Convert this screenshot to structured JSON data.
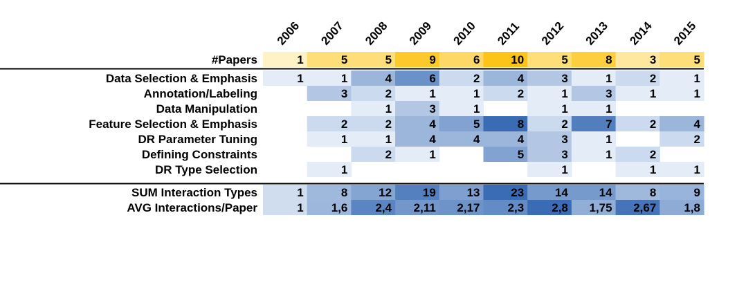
{
  "chart_data": {
    "type": "heatmap",
    "title": "",
    "years": [
      "2006",
      "2007",
      "2008",
      "2009",
      "2010",
      "2011",
      "2012",
      "2013",
      "2014",
      "2015"
    ],
    "papers": {
      "label": "#Papers",
      "values": [
        1,
        5,
        5,
        9,
        6,
        10,
        5,
        8,
        3,
        5
      ],
      "color": "#fcc419"
    },
    "rows": [
      {
        "label": "Data Selection & Emphasis",
        "values": [
          1,
          1,
          4,
          6,
          2,
          4,
          3,
          1,
          2,
          1
        ]
      },
      {
        "label": "Annotation/Labeling",
        "values": [
          null,
          3,
          2,
          1,
          1,
          2,
          1,
          3,
          1,
          1
        ]
      },
      {
        "label": "Data Manipulation",
        "values": [
          null,
          null,
          1,
          3,
          1,
          null,
          1,
          1,
          null,
          null
        ]
      },
      {
        "label": "Feature Selection & Emphasis",
        "values": [
          null,
          2,
          2,
          4,
          5,
          8,
          2,
          7,
          2,
          4
        ]
      },
      {
        "label": "DR Parameter Tuning",
        "values": [
          null,
          1,
          1,
          4,
          4,
          4,
          3,
          1,
          null,
          2
        ]
      },
      {
        "label": "Defining Constraints",
        "values": [
          null,
          null,
          2,
          1,
          null,
          5,
          3,
          1,
          2,
          null
        ]
      },
      {
        "label": "DR Type Selection",
        "values": [
          null,
          1,
          null,
          null,
          null,
          null,
          1,
          null,
          1,
          1
        ]
      }
    ],
    "sum": {
      "label": "SUM Interaction Types",
      "values": [
        1,
        8,
        12,
        19,
        13,
        23,
        14,
        14,
        8,
        9
      ]
    },
    "avg": {
      "label": "AVG Interactions/Paper",
      "values": [
        1,
        1.6,
        2.4,
        2.11,
        2.17,
        2.3,
        2.8,
        1.75,
        2.67,
        1.8
      ],
      "display": [
        "1",
        "1,6",
        "2,4",
        "2,11",
        "2,17",
        "2,3",
        "2,8",
        "1,75",
        "2,67",
        "1,8"
      ]
    },
    "color_scale": {
      "low": "#e3ecf7",
      "high": "#3a6cb5"
    }
  }
}
